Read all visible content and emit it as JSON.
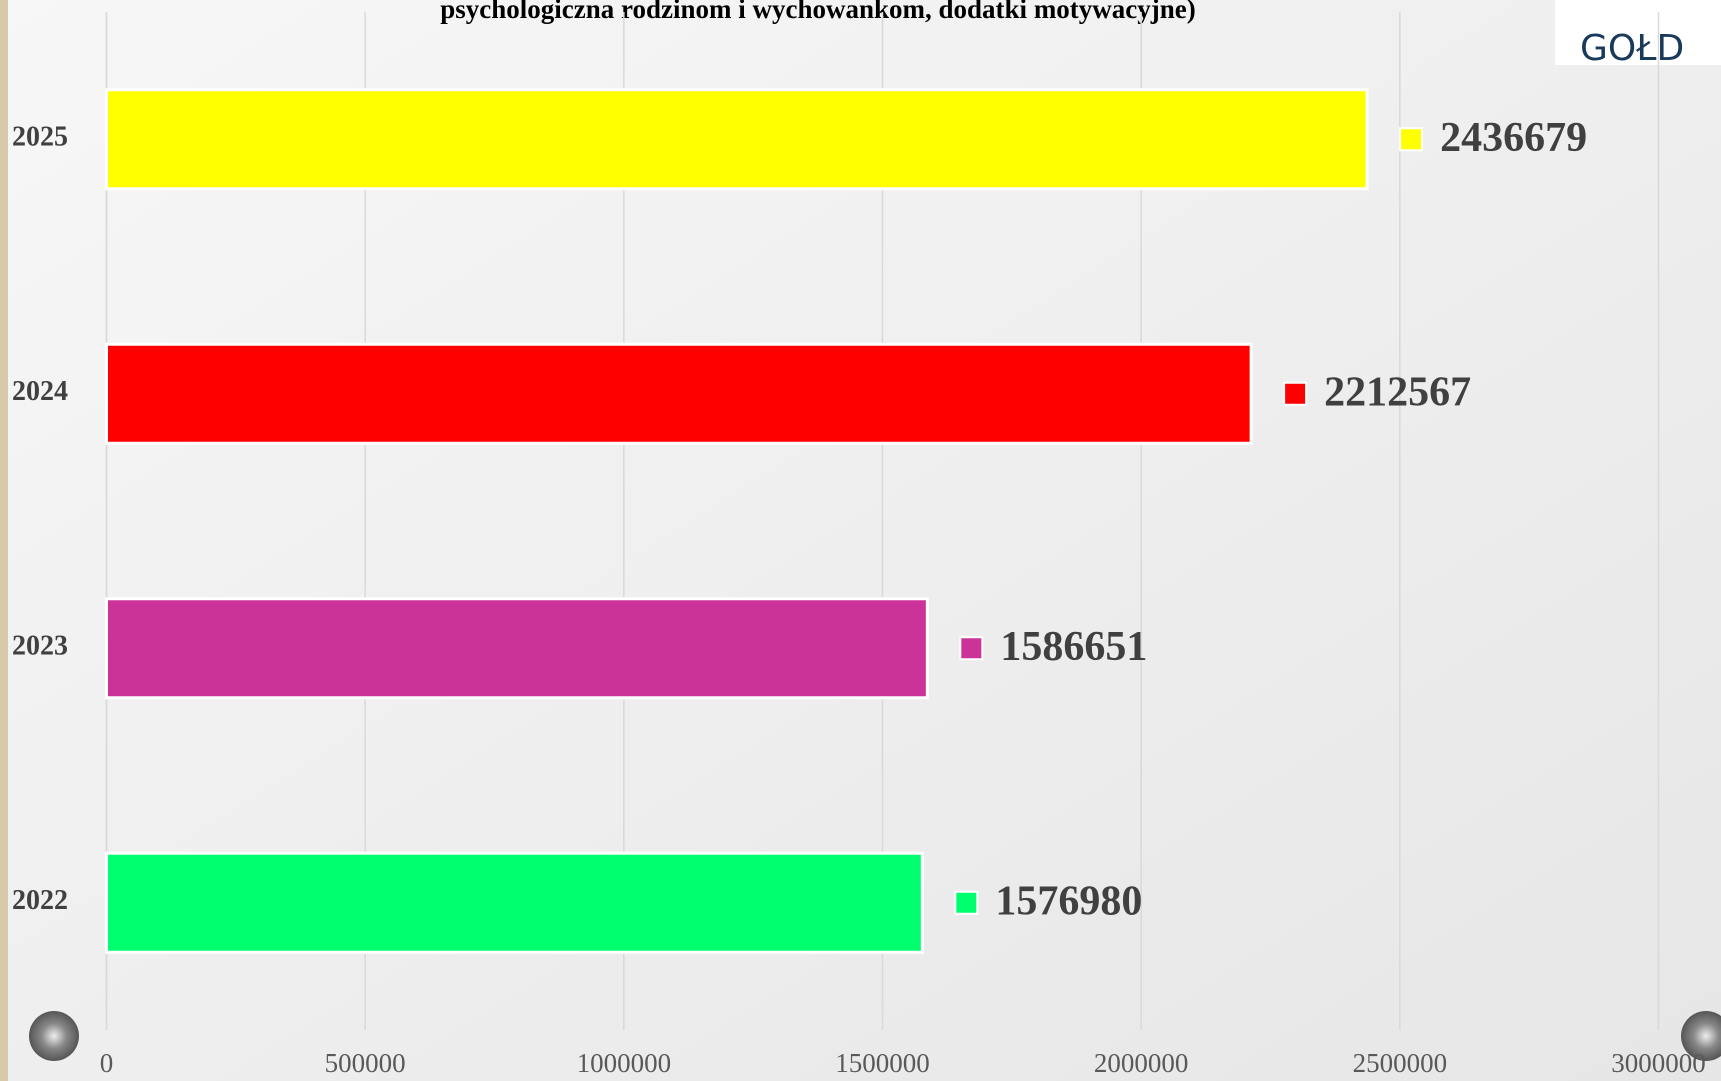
{
  "chart_data": {
    "type": "bar",
    "orientation": "horizontal",
    "title": "psychologiczna rodzinom i wychowankom, dodatki motywacyjne)",
    "logo_text": "GOŁD",
    "categories": [
      "2025",
      "2024",
      "2023",
      "2022"
    ],
    "values": [
      2436679,
      2212567,
      1586651,
      1576980
    ],
    "colors": [
      "#ffff00",
      "#ff0000",
      "#cc3399",
      "#00ff6e"
    ],
    "xlim": [
      0,
      3000000
    ],
    "xticks": [
      0,
      500000,
      1000000,
      1500000,
      2000000,
      2500000,
      3000000
    ],
    "grid": true
  }
}
